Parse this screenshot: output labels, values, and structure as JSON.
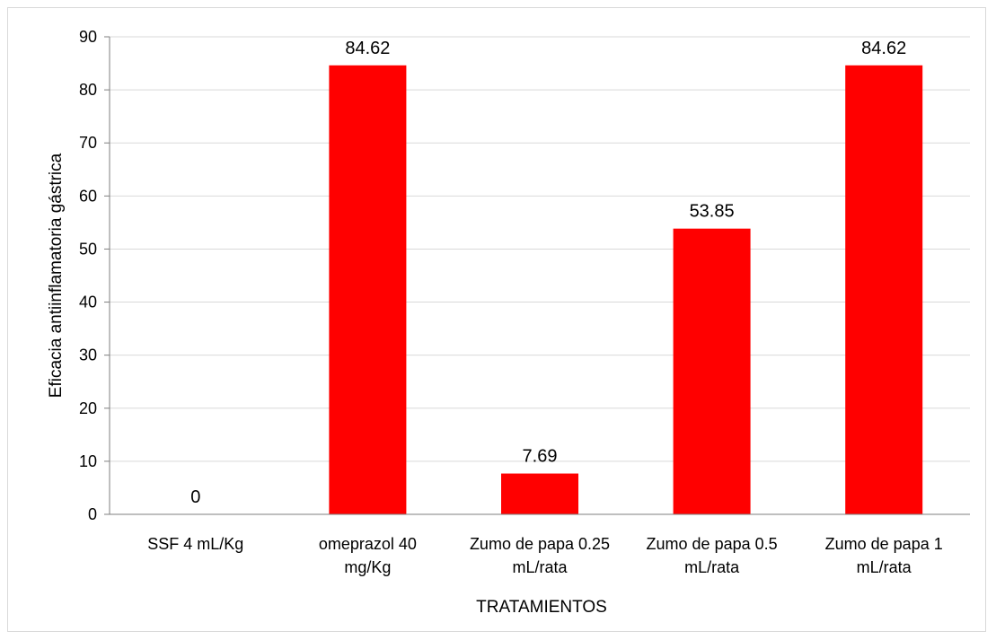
{
  "chart_data": {
    "type": "bar",
    "categories": [
      [
        "SSF 4 mL/Kg"
      ],
      [
        "omeprazol 40",
        "mg/Kg"
      ],
      [
        "Zumo de papa 0.25",
        "mL/rata"
      ],
      [
        "Zumo de papa 0.5",
        "mL/rata"
      ],
      [
        "Zumo de papa 1",
        "mL/rata"
      ]
    ],
    "values": [
      0,
      84.62,
      7.69,
      53.85,
      84.62
    ],
    "value_labels": [
      "0",
      "84.62",
      "7.69",
      "53.85",
      "84.62"
    ],
    "xlabel": "TRATAMIENTOS",
    "ylabel": "Eficacia antiinflamatoria gástrica",
    "ylim": [
      0,
      90
    ],
    "yticks": [
      0,
      10,
      20,
      30,
      40,
      50,
      60,
      70,
      80,
      90
    ],
    "grid": true,
    "legend": "none",
    "bar_color": "#ff0000",
    "grid_color": "#d9d9d9"
  }
}
